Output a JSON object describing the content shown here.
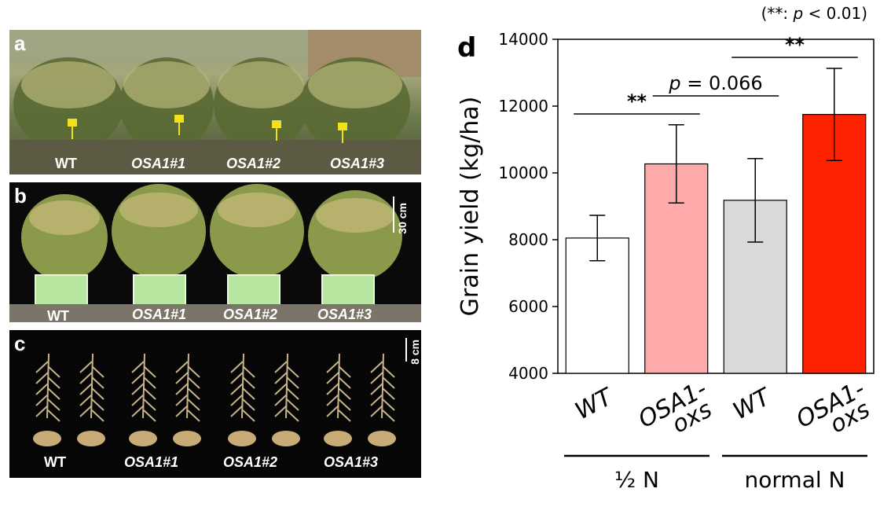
{
  "pvalue_note_prefix": "(**: ",
  "pvalue_note_p": "p",
  "pvalue_note_suffix": " < 0.01)",
  "panels": {
    "a": {
      "letter": "a",
      "labels": [
        "WT",
        "OSA1#1",
        "OSA1#2",
        "OSA1#3"
      ]
    },
    "b": {
      "letter": "b",
      "labels": [
        "WT",
        "OSA1#1",
        "OSA1#2",
        "OSA1#3"
      ],
      "scale": "30 cm"
    },
    "c": {
      "letter": "c",
      "labels": [
        "WT",
        "OSA1#1",
        "OSA1#2",
        "OSA1#3"
      ],
      "scale": "8 cm"
    }
  },
  "chart_data": {
    "type": "bar",
    "panel_letter": "d",
    "ylabel": "Grain yield (kg/ha)",
    "ylim": [
      4000,
      14000
    ],
    "yticks": [
      4000,
      6000,
      8000,
      10000,
      12000,
      14000
    ],
    "categories": [
      "WT",
      "OSA1-oxs",
      "WT",
      "OSA1-oxs"
    ],
    "category_lines": [
      [
        "WT"
      ],
      [
        "OSA1-",
        "oxs"
      ],
      [
        "WT"
      ],
      [
        "OSA1-",
        "oxs"
      ]
    ],
    "groups": [
      "½ N",
      "normal N"
    ],
    "values": [
      8050,
      10270,
      9180,
      11750
    ],
    "errors": [
      680,
      1170,
      1250,
      1380
    ],
    "colors": [
      "#ffffff",
      "#ffaaaa",
      "#d9d9d9",
      "#ff2200"
    ],
    "significance": [
      {
        "from": 0,
        "to": 1,
        "label": "**"
      },
      {
        "from": 1,
        "to": 2,
        "label": "p = 0.066"
      },
      {
        "from": 2,
        "to": 3,
        "label": "**"
      }
    ]
  }
}
